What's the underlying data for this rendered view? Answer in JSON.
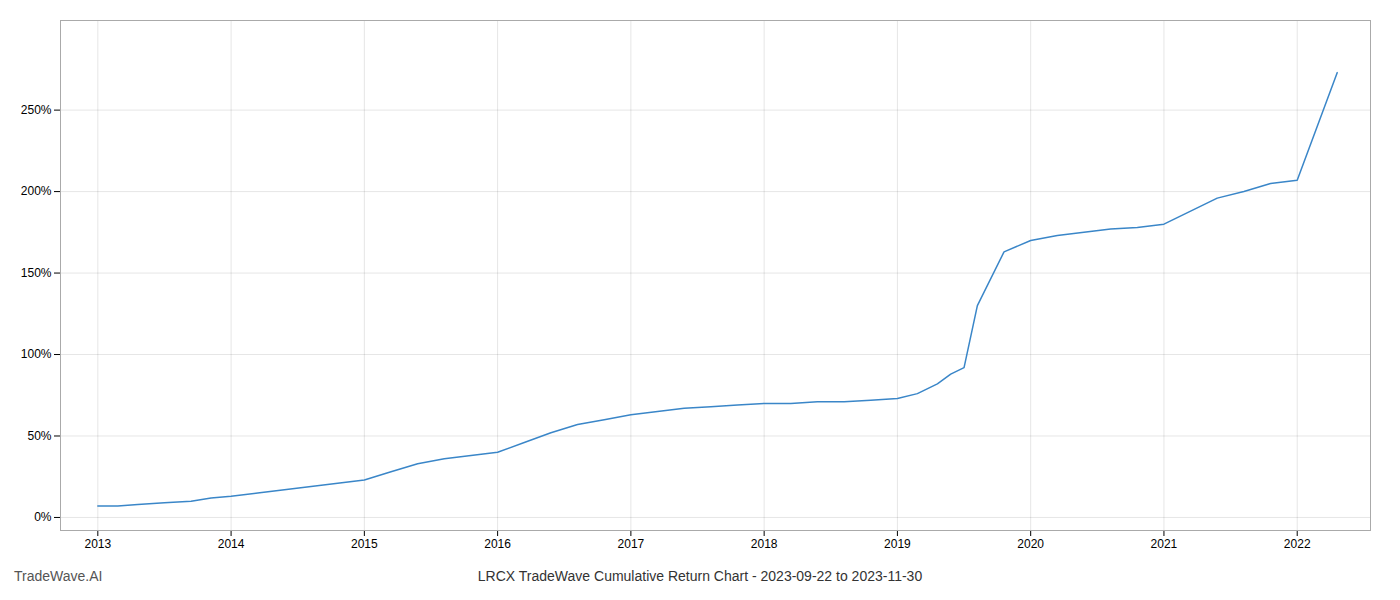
{
  "chart_data": {
    "type": "line",
    "title": "LRCX TradeWave Cumulative Return Chart - 2023-09-22 to 2023-11-30",
    "annotations": [
      "TradeWave.AI"
    ],
    "color": "#3a86c8",
    "x": [
      2013.0,
      2013.15,
      2013.3,
      2013.5,
      2013.7,
      2013.85,
      2014.0,
      2014.2,
      2014.4,
      2014.6,
      2014.8,
      2015.0,
      2015.2,
      2015.4,
      2015.6,
      2015.8,
      2016.0,
      2016.2,
      2016.4,
      2016.6,
      2016.8,
      2017.0,
      2017.2,
      2017.4,
      2017.6,
      2017.8,
      2018.0,
      2018.2,
      2018.4,
      2018.6,
      2018.8,
      2019.0,
      2019.15,
      2019.3,
      2019.4,
      2019.5,
      2019.6,
      2019.8,
      2020.0,
      2020.2,
      2020.4,
      2020.6,
      2020.8,
      2021.0,
      2021.2,
      2021.4,
      2021.6,
      2021.8,
      2022.0,
      2022.15,
      2022.3
    ],
    "values": [
      7,
      7,
      8,
      9,
      10,
      12,
      13,
      15,
      17,
      19,
      21,
      23,
      28,
      33,
      36,
      38,
      40,
      46,
      52,
      57,
      60,
      63,
      65,
      67,
      68,
      69,
      70,
      70,
      71,
      71,
      72,
      73,
      76,
      82,
      88,
      92,
      130,
      163,
      170,
      173,
      175,
      177,
      178,
      180,
      188,
      196,
      200,
      205,
      207,
      240,
      273
    ],
    "xlim": [
      2012.72,
      2022.55
    ],
    "xticks": [
      2013,
      2014,
      2015,
      2016,
      2017,
      2018,
      2019,
      2020,
      2021,
      2022
    ],
    "ylim": [
      -8,
      305
    ],
    "yticks": [
      {
        "value": 0,
        "label": "0%"
      },
      {
        "value": 50,
        "label": "50%"
      },
      {
        "value": 100,
        "label": "100%"
      },
      {
        "value": 150,
        "label": "150%"
      },
      {
        "value": 200,
        "label": "200%"
      },
      {
        "value": 250,
        "label": "250%"
      }
    ],
    "grid": true
  }
}
